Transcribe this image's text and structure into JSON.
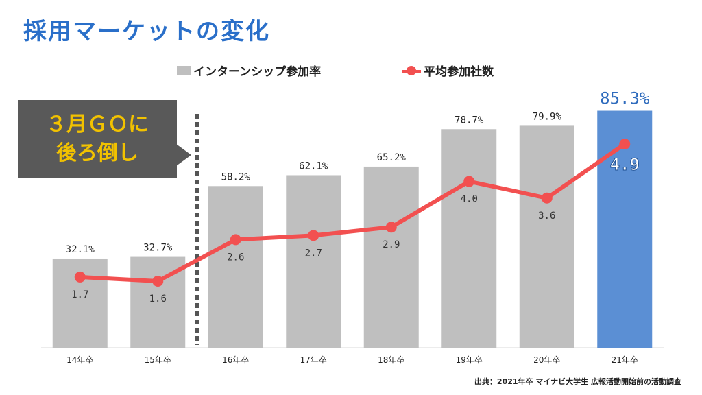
{
  "title": "採用マーケットの変化",
  "legend": {
    "bar_label": "インターンシップ参加率",
    "line_label": "平均参加社数"
  },
  "callout": {
    "line1": "３月ＧＯに",
    "line2": "後ろ倒し"
  },
  "source": "出典：2021年卒 マイナビ大学生 広報活動開始前の活動調査",
  "colors": {
    "bar": "#bfbfbf",
    "bar_highlight": "#5b8fd4",
    "line": "#f25050",
    "title": "#2a6fc9",
    "callout_text": "#f2c200"
  },
  "chart_data": {
    "type": "bar",
    "categories": [
      "14年卒",
      "15年卒",
      "16年卒",
      "17年卒",
      "18年卒",
      "19年卒",
      "20年卒",
      "21年卒"
    ],
    "series": [
      {
        "name": "インターンシップ参加率",
        "type": "bar",
        "unit": "%",
        "values": [
          32.1,
          32.7,
          58.2,
          62.1,
          65.2,
          78.7,
          79.9,
          85.3
        ],
        "labels": [
          "32.1%",
          "32.7%",
          "58.2%",
          "62.1%",
          "65.2%",
          "78.7%",
          "79.9%",
          "85.3%"
        ]
      },
      {
        "name": "平均参加社数",
        "type": "line",
        "values": [
          1.7,
          1.6,
          2.6,
          2.7,
          2.9,
          4.0,
          3.6,
          4.9
        ],
        "labels": [
          "1.7",
          "1.6",
          "2.6",
          "2.7",
          "2.9",
          "4.0",
          "3.6",
          "4.9"
        ]
      }
    ],
    "highlight_category": "21年卒",
    "divider_after": "15年卒"
  }
}
